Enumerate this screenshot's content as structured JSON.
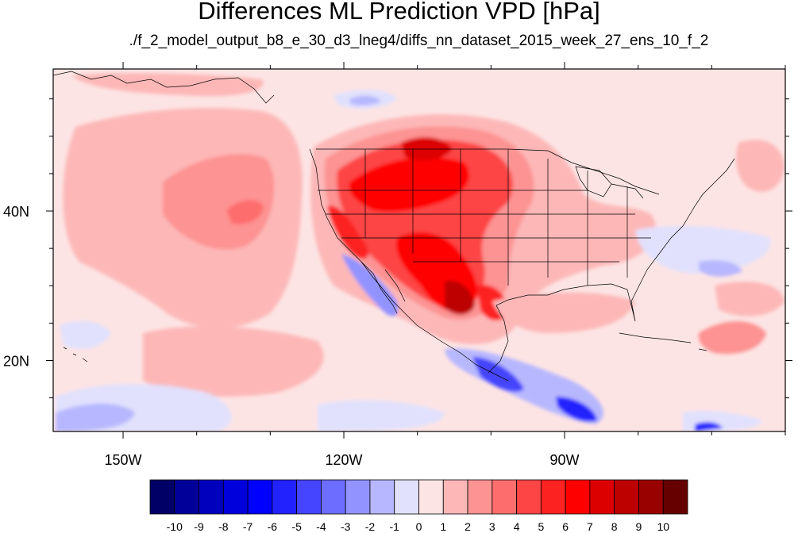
{
  "title": "Differences ML Prediction VPD [hPa]",
  "subtitle": "./f_2_model_output_b8_e_30_d3_lneg4/diffs_nn_dataset_2015_week_27_ens_10_f_2",
  "map": {
    "lon_range": [
      -159.5,
      -60
    ],
    "lat_range": [
      10.5,
      59
    ],
    "lon_ticks": [
      {
        "value": -150,
        "label": "150W"
      },
      {
        "value": -120,
        "label": "120W"
      },
      {
        "value": -90,
        "label": "90W"
      }
    ],
    "lat_ticks": [
      {
        "value": 40,
        "label": "40N"
      },
      {
        "value": 20,
        "label": "20N"
      }
    ],
    "background_color": "#fde4e4"
  },
  "colorbar": {
    "labels": [
      "-10",
      "-9",
      "-8",
      "-7",
      "-6",
      "-5",
      "-4",
      "-3",
      "-2",
      "-1",
      "0",
      "1",
      "2",
      "3",
      "4",
      "5",
      "6",
      "7",
      "8",
      "9",
      "10"
    ],
    "colors": [
      "#010066",
      "#010099",
      "#0000bd",
      "#0000dd",
      "#0000ff",
      "#2222ff",
      "#4545ff",
      "#6d6dff",
      "#9393ff",
      "#b7b7ff",
      "#e1e1fd",
      "#fde4e4",
      "#fdb7b7",
      "#fd9393",
      "#fd6d6d",
      "#fd4545",
      "#fd2222",
      "#ff0000",
      "#dd0000",
      "#bd0000",
      "#990000",
      "#660000"
    ]
  }
}
